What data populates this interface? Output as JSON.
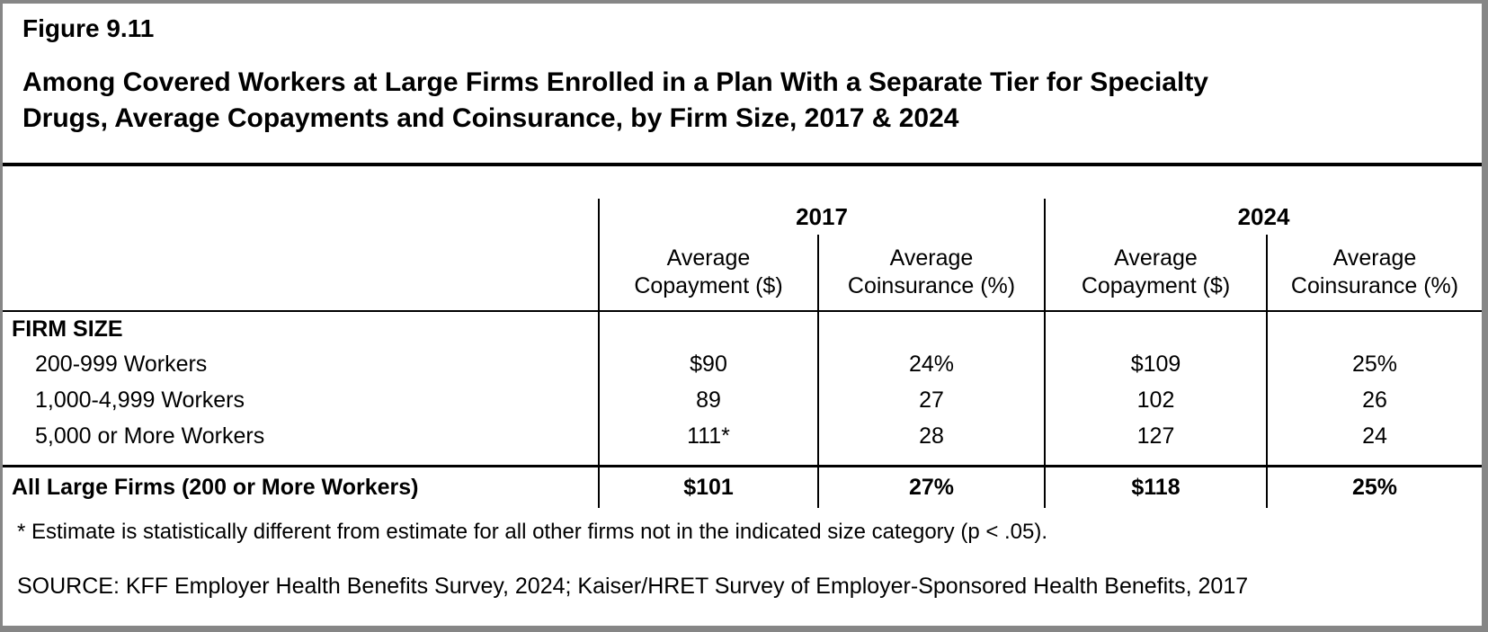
{
  "figure": {
    "number": "Figure 9.11",
    "title_lines": [
      "Among Covered Workers at Large Firms Enrolled in a Plan With a Separate Tier for Specialty",
      "Drugs, Average Copayments and Coinsurance, by Firm Size, 2017 & 2024"
    ]
  },
  "table": {
    "year_groups": [
      "2017",
      "2024"
    ],
    "sub_headers": [
      "Average\nCopayment ($)",
      "Average\nCoinsurance (%)",
      "Average\nCopayment ($)",
      "Average\nCoinsurance (%)"
    ],
    "section_label": "FIRM SIZE",
    "rows": [
      {
        "label": "200-999 Workers",
        "values": [
          "$90",
          "24%",
          "$109",
          "25%"
        ]
      },
      {
        "label": "1,000-4,999 Workers",
        "values": [
          "89",
          "27",
          "102",
          "26"
        ]
      },
      {
        "label": "5,000 or More Workers",
        "values": [
          "111*",
          "28",
          "127",
          "24"
        ]
      }
    ],
    "total_row": {
      "label": "All Large Firms (200 or More Workers)",
      "values": [
        "$101",
        "27%",
        "$118",
        "25%"
      ]
    }
  },
  "footnote": "* Estimate is statistically different from estimate for all other firms not in the indicated size category (p < .05).",
  "source": "SOURCE: KFF Employer Health Benefits Survey, 2024; Kaiser/HRET Survey of Employer-Sponsored Health Benefits, 2017",
  "colors": {
    "background": "#ffffff",
    "text": "#000000",
    "rule": "#000000",
    "frame": "#868686"
  },
  "chart_data": {
    "type": "table",
    "title": "Among Covered Workers at Large Firms Enrolled in a Plan With a Separate Tier for Specialty Drugs, Average Copayments and Coinsurance, by Firm Size, 2017 & 2024",
    "column_groups": [
      "2017",
      "2024"
    ],
    "columns": [
      "Average Copayment ($) 2017",
      "Average Coinsurance (%) 2017",
      "Average Copayment ($) 2024",
      "Average Coinsurance (%) 2024"
    ],
    "categories": [
      "200-999 Workers",
      "1,000-4,999 Workers",
      "5,000 or More Workers",
      "All Large Firms (200 or More Workers)"
    ],
    "series": [
      {
        "name": "Average Copayment ($) 2017",
        "values": [
          90,
          89,
          111,
          101
        ]
      },
      {
        "name": "Average Coinsurance (%) 2017",
        "values": [
          24,
          27,
          28,
          27
        ]
      },
      {
        "name": "Average Copayment ($) 2024",
        "values": [
          109,
          102,
          127,
          118
        ]
      },
      {
        "name": "Average Coinsurance (%) 2024",
        "values": [
          25,
          26,
          24,
          25
        ]
      }
    ],
    "annotations": [
      "* on 5,000 or More Workers 2017 copayment: statistically different (p < .05)"
    ]
  }
}
